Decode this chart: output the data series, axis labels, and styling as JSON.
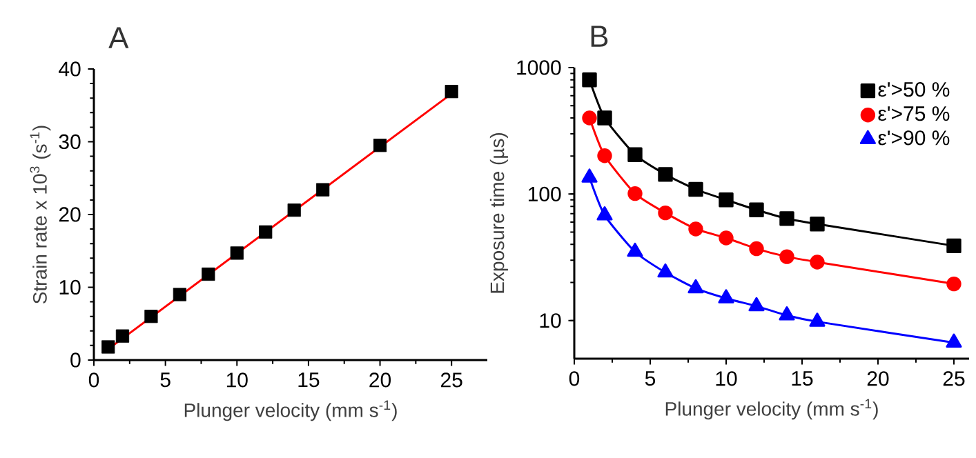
{
  "chart_data": [
    {
      "type": "scatter",
      "title": "A",
      "xlabel": "Plunger velocity (mm s$^{-1}$)",
      "ylabel": "Strain rate x 10$^{3}$ (s$^{-1}$)",
      "xlim": [
        0,
        27.5
      ],
      "ylim": [
        0,
        40
      ],
      "xticks": [
        0,
        5,
        10,
        15,
        20,
        25
      ],
      "yticks": [
        0,
        10,
        20,
        30,
        40
      ],
      "x": [
        1,
        2,
        4,
        6,
        8,
        10,
        12,
        14,
        16,
        20,
        25
      ],
      "marker": "square",
      "series": [
        {
          "color": "#000000",
          "values": [
            1.8,
            3.3,
            6.0,
            9.0,
            11.8,
            14.7,
            17.6,
            20.6,
            23.4,
            29.5,
            36.9
          ]
        },
        {
          "type": "line",
          "color": "#ff0000",
          "marker": "none",
          "x": [
            1,
            25
          ],
          "values": [
            1.5,
            36.6
          ]
        }
      ]
    },
    {
      "type": "line",
      "title": "B",
      "xlabel": "Plunger velocity (mm s$^{-1}$)",
      "ylabel": "Exposure time (µs)",
      "xlim": [
        0,
        26
      ],
      "ylim": [
        5,
        1000
      ],
      "xticks": [
        0,
        5,
        10,
        15,
        20,
        25
      ],
      "yticks": [
        10,
        100,
        1000
      ],
      "log": true,
      "legend": "top right",
      "x": [
        1,
        2,
        4,
        6,
        8,
        10,
        12,
        14,
        16,
        25
      ],
      "series": [
        {
          "name": "ε'>50 %",
          "color": "#000000",
          "marker": "square",
          "values": [
            800,
            400,
            205,
            143,
            109,
            90,
            75,
            64,
            58,
            39
          ]
        },
        {
          "name": "ε'>75 %",
          "color": "#ff0000",
          "marker": "circle",
          "values": [
            400,
            201,
            101,
            71,
            53,
            45,
            37,
            32,
            29,
            19.5
          ]
        },
        {
          "name": "ε'>90 %",
          "color": "#0000ff",
          "marker": "triangle",
          "values": [
            135,
            68,
            35,
            24,
            18,
            15,
            13,
            11,
            9.8,
            6.7
          ]
        }
      ]
    }
  ]
}
